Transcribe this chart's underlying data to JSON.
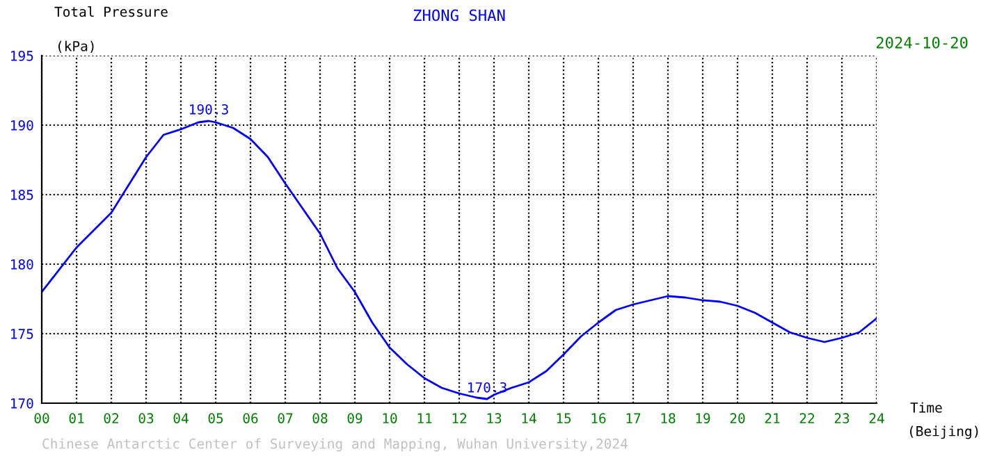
{
  "chart_data": {
    "type": "line",
    "title": "ZHONG SHAN",
    "subtitle": "2024-10-20",
    "ylabel": "Total Pressure",
    "xlabel": "Time",
    "annotations": [
      "(kPa)",
      "(Beijing)",
      "Chinese Antarctic Center of Surveying and Mapping, Wuhan University,2024",
      {
        "text": "190.3",
        "x": 4.8,
        "y": 190.3
      },
      {
        "text": "170.3",
        "x": 12.8,
        "y": 170.3
      }
    ],
    "x": [
      0,
      1,
      2,
      3,
      3.5,
      4,
      4.5,
      4.8,
      5,
      5.5,
      6,
      6.5,
      7,
      7.5,
      8,
      8.5,
      9,
      9.5,
      10,
      10.5,
      11,
      11.5,
      12,
      12.5,
      12.8,
      13,
      13.5,
      14,
      14.5,
      15,
      15.5,
      16,
      16.5,
      17,
      17.5,
      18,
      18.5,
      19,
      19.5,
      20,
      20.5,
      21,
      21.5,
      22,
      22.5,
      23,
      23.5,
      24
    ],
    "series": [
      {
        "color": "#0000ff",
        "values": [
          178.0,
          181.2,
          183.7,
          187.7,
          189.3,
          189.7,
          190.2,
          190.3,
          190.2,
          189.8,
          189.0,
          187.7,
          185.8,
          184.0,
          182.2,
          179.7,
          178.0,
          175.8,
          174.0,
          172.8,
          171.8,
          171.1,
          170.7,
          170.4,
          170.3,
          170.6,
          171.1,
          171.5,
          172.3,
          173.5,
          174.8,
          175.8,
          176.7,
          177.1,
          177.4,
          177.7,
          177.6,
          177.4,
          177.3,
          177.0,
          176.5,
          175.8,
          175.1,
          174.7,
          174.4,
          174.7,
          175.1,
          176.1
        ]
      }
    ],
    "xlim": [
      0,
      24
    ],
    "ylim": [
      170,
      195
    ],
    "xticks": [
      {
        "value": 0,
        "label": "00"
      },
      {
        "value": 1,
        "label": "01"
      },
      {
        "value": 2,
        "label": "02"
      },
      {
        "value": 3,
        "label": "03"
      },
      {
        "value": 4,
        "label": "04"
      },
      {
        "value": 5,
        "label": "05"
      },
      {
        "value": 6,
        "label": "06"
      },
      {
        "value": 7,
        "label": "07"
      },
      {
        "value": 8,
        "label": "08"
      },
      {
        "value": 9,
        "label": "09"
      },
      10,
      11,
      12,
      13,
      14,
      15,
      16,
      17,
      18,
      19,
      20,
      21,
      22,
      23,
      24
    ],
    "yticks": [
      170,
      175,
      180,
      185,
      190,
      195
    ],
    "grid": true,
    "marker": "none",
    "line_style": "solid"
  }
}
